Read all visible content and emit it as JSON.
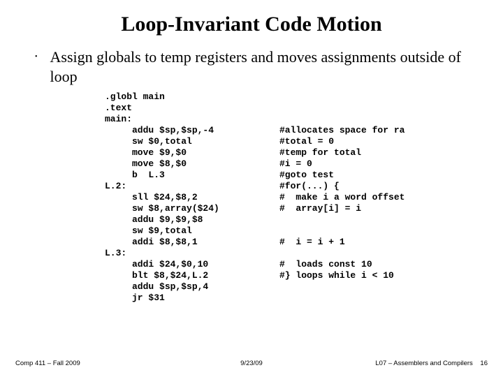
{
  "title": "Loop-Invariant Code Motion",
  "title_fontsize": 30,
  "bullet": "Assign globals to temp registers and moves assignments outside of loop",
  "bullet_fontsize": 22,
  "code_fontsize": 13,
  "code_lines": [
    {
      "left": ".globl main",
      "right": ""
    },
    {
      "left": ".text",
      "right": ""
    },
    {
      "left": "main:",
      "right": ""
    },
    {
      "left": "     addu $sp,$sp,-4",
      "right": "#allocates space for ra"
    },
    {
      "left": "     sw $0,total",
      "right": "#total = 0"
    },
    {
      "left": "     move $9,$0",
      "right": "#temp for total"
    },
    {
      "left": "     move $8,$0",
      "right": "#i = 0"
    },
    {
      "left": "     b  L.3",
      "right": "#goto test"
    },
    {
      "left": "L.2:",
      "right": "#for(...) {"
    },
    {
      "left": "     sll $24,$8,2",
      "right": "#  make i a word offset"
    },
    {
      "left": "     sw $8,array($24)",
      "right": "#  array[i] = i"
    },
    {
      "left": "     addu $9,$9,$8",
      "right": ""
    },
    {
      "left": "     sw $9,total",
      "right": ""
    },
    {
      "left": "     addi $8,$8,1",
      "right": "#  i = i + 1"
    },
    {
      "left": "L.3:",
      "right": ""
    },
    {
      "left": "     addi $24,$0,10",
      "right": "#  loads const 10"
    },
    {
      "left": "     blt $8,$24,L.2",
      "right": "#} loops while i < 10"
    },
    {
      "left": "     addu $sp,$sp,4",
      "right": ""
    },
    {
      "left": "     jr $31",
      "right": ""
    }
  ],
  "footer": {
    "left": "Comp 411 – Fall 2009",
    "center": "9/23/09",
    "right_label": "L07 – Assemblers and Compilers",
    "page": "16"
  }
}
